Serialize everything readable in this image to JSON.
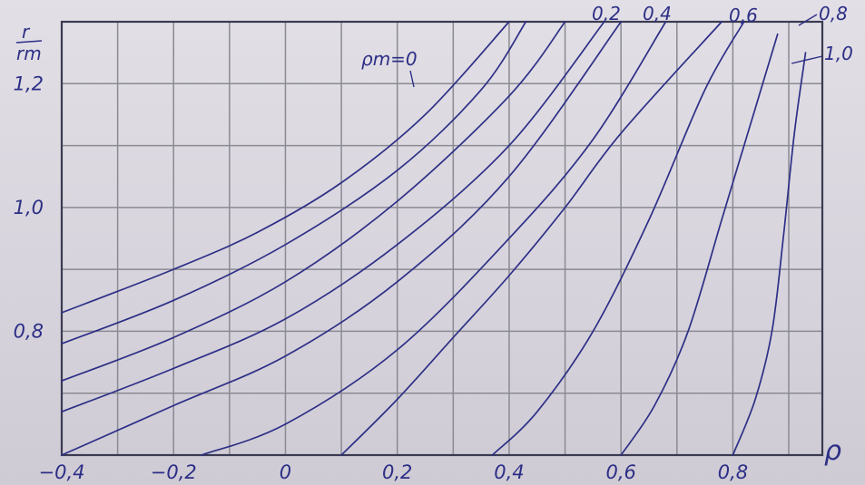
{
  "chart_data": {
    "type": "line",
    "title": "",
    "xlabel": "ρ",
    "ylabel_numerator": "r",
    "ylabel_denominator": "rm",
    "xlim": [
      -0.4,
      0.96
    ],
    "ylim": [
      0.6,
      1.3
    ],
    "x_ticks": [
      {
        "value": -0.4,
        "label": "−0,4"
      },
      {
        "value": -0.2,
        "label": "−0,2"
      },
      {
        "value": 0.0,
        "label": "0"
      },
      {
        "value": 0.2,
        "label": "0,2"
      },
      {
        "value": 0.4,
        "label": "0,4"
      },
      {
        "value": 0.6,
        "label": "0,6"
      },
      {
        "value": 0.8,
        "label": "0,8"
      }
    ],
    "y_ticks": [
      {
        "value": 0.8,
        "label": "0,8"
      },
      {
        "value": 1.0,
        "label": "1,0"
      },
      {
        "value": 1.2,
        "label": "1,2"
      }
    ],
    "grid": true,
    "series": [
      {
        "name": "ρm=0",
        "x": [
          -0.4,
          -0.2,
          -0.05,
          0.1,
          0.25,
          0.4
        ],
        "y": [
          0.83,
          0.9,
          0.96,
          1.04,
          1.15,
          1.3
        ]
      },
      {
        "name": "",
        "x": [
          -0.4,
          -0.2,
          0.0,
          0.2,
          0.35,
          0.43
        ],
        "y": [
          0.78,
          0.85,
          0.94,
          1.06,
          1.19,
          1.3
        ]
      },
      {
        "name": "",
        "x": [
          -0.4,
          -0.2,
          0.0,
          0.2,
          0.4,
          0.5
        ],
        "y": [
          0.72,
          0.79,
          0.88,
          1.01,
          1.18,
          1.3
        ]
      },
      {
        "name": "",
        "x": [
          -0.4,
          -0.2,
          0.0,
          0.2,
          0.4,
          0.57
        ],
        "y": [
          0.67,
          0.74,
          0.82,
          0.94,
          1.1,
          1.3
        ]
      },
      {
        "name": "0,2",
        "x": [
          -0.4,
          -0.2,
          0.0,
          0.2,
          0.4,
          0.6
        ],
        "y": [
          0.6,
          0.68,
          0.76,
          0.88,
          1.05,
          1.3
        ]
      },
      {
        "name": "0,4",
        "x": [
          -0.15,
          0.0,
          0.2,
          0.4,
          0.55,
          0.68
        ],
        "y": [
          0.6,
          0.65,
          0.77,
          0.95,
          1.11,
          1.3
        ]
      },
      {
        "name": "0,6",
        "x": [
          0.1,
          0.2,
          0.3,
          0.4,
          0.5,
          0.6,
          0.78
        ],
        "y": [
          0.6,
          0.69,
          0.79,
          0.89,
          1.0,
          1.12,
          1.3
        ]
      },
      {
        "name": "",
        "x": [
          0.37,
          0.45,
          0.55,
          0.65,
          0.75,
          0.82
        ],
        "y": [
          0.6,
          0.67,
          0.8,
          0.98,
          1.19,
          1.3
        ]
      },
      {
        "name": "0,8",
        "x": [
          0.6,
          0.66,
          0.72,
          0.78,
          0.84,
          0.88
        ],
        "y": [
          0.6,
          0.68,
          0.8,
          0.98,
          1.16,
          1.28
        ]
      },
      {
        "name": "1,0",
        "x": [
          0.8,
          0.84,
          0.87,
          0.89,
          0.91,
          0.93
        ],
        "y": [
          0.6,
          0.69,
          0.8,
          0.95,
          1.12,
          1.25
        ]
      }
    ],
    "annotations": [
      "ρm=0",
      "0,2",
      "0,4",
      "0,6",
      "0,8",
      "1,0"
    ]
  }
}
